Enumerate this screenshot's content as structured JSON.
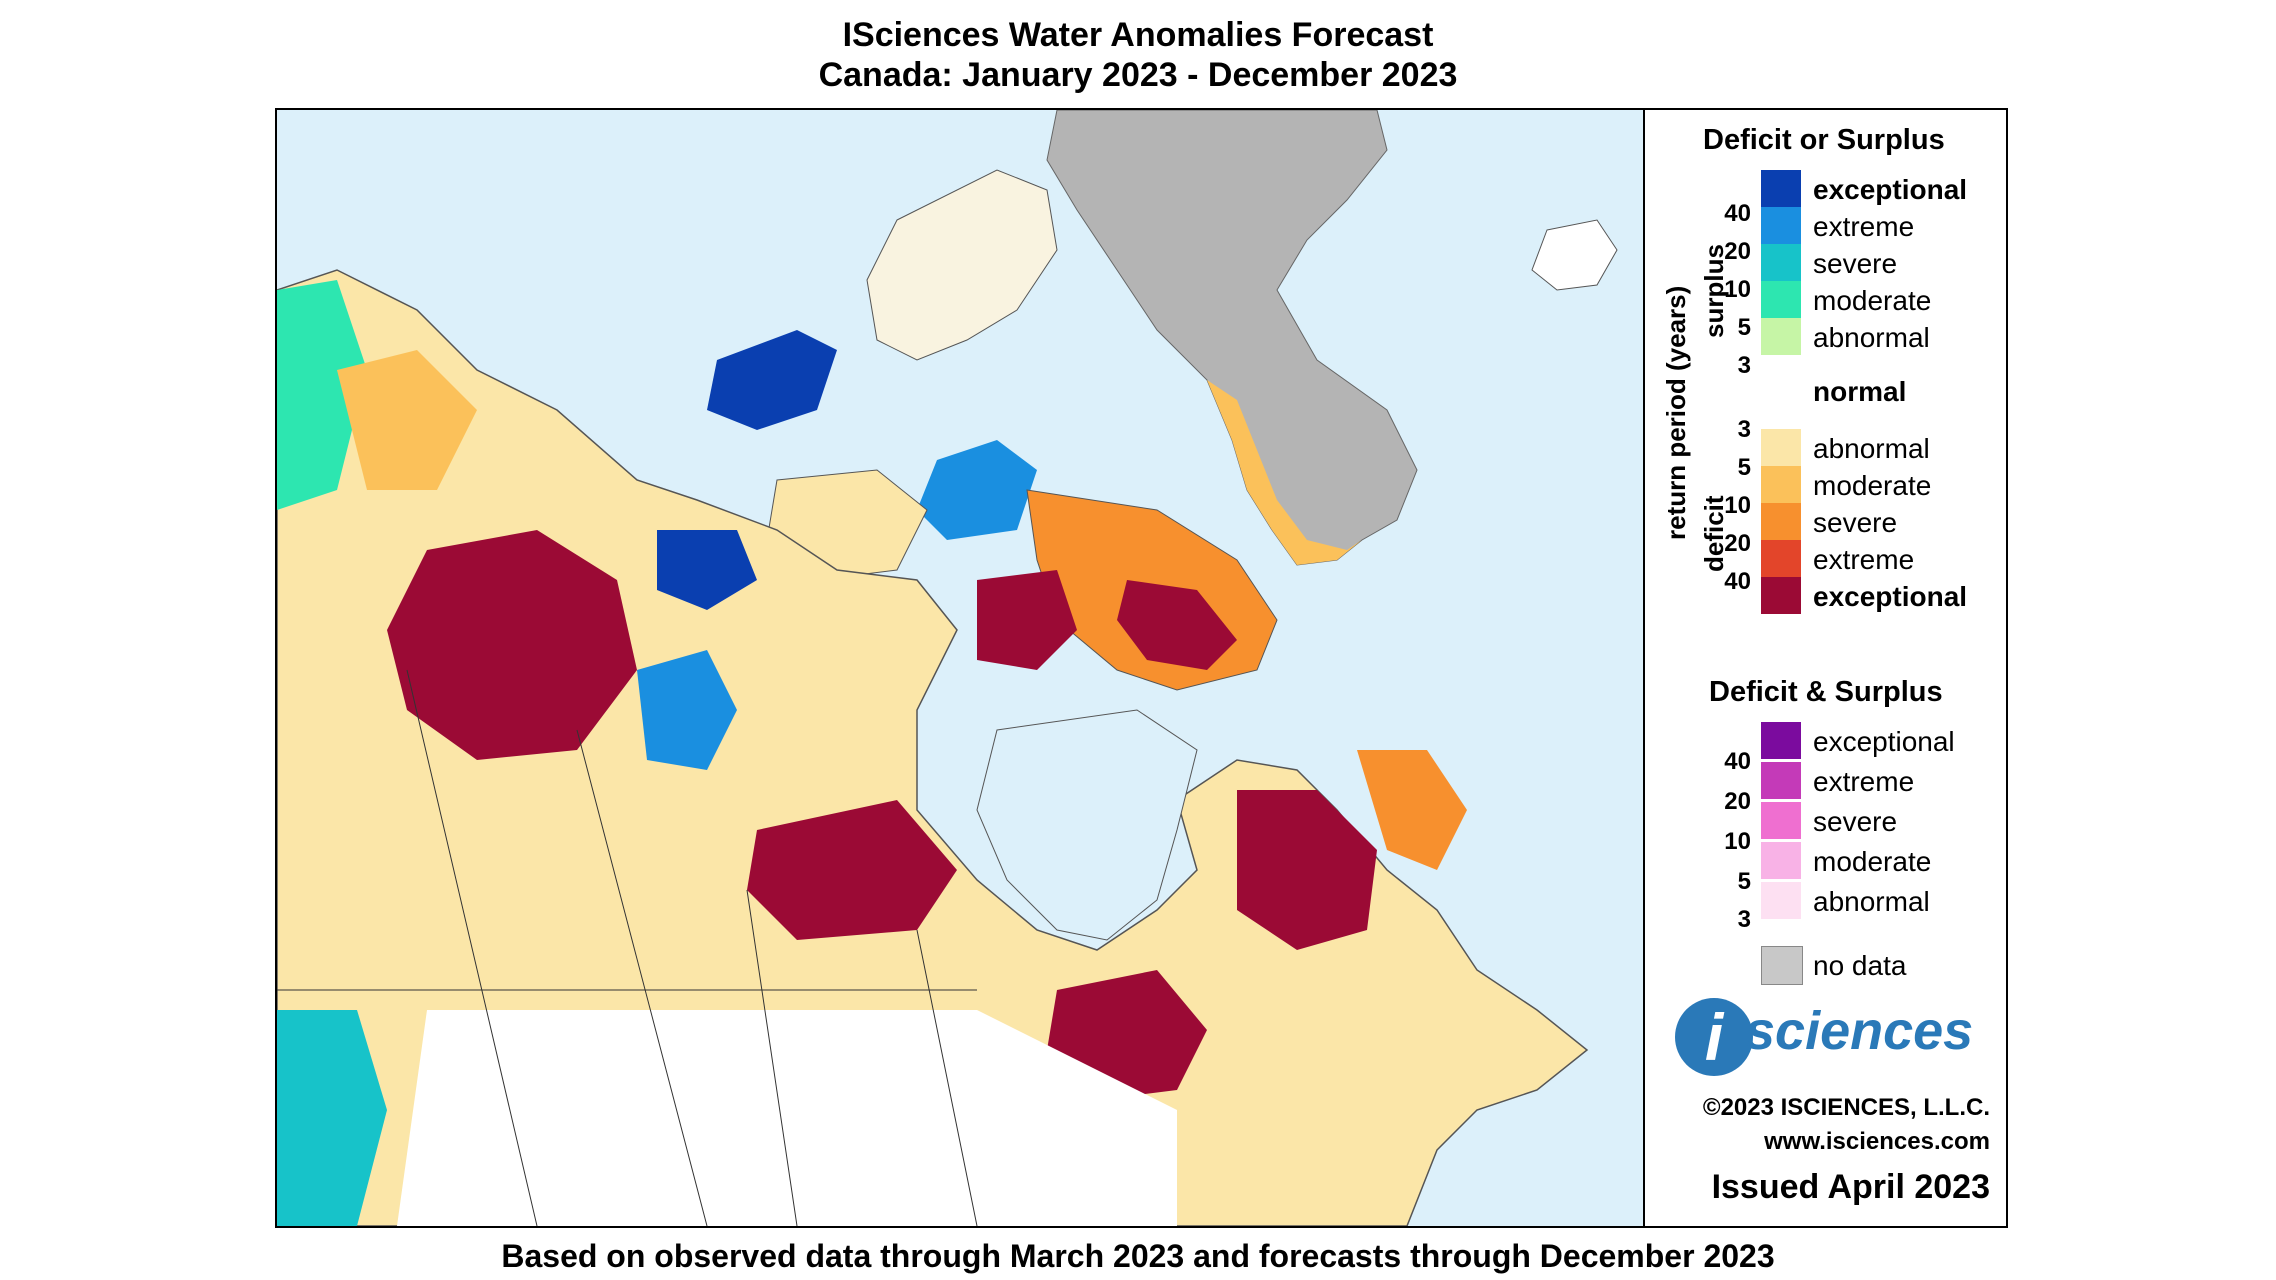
{
  "title_line1": "ISciences Water Anomalies Forecast",
  "title_line2": "Canada: January 2023 - December 2023",
  "footer": "Based on observed data through March 2023 and forecasts through December 2023",
  "legend": {
    "section1_title": "Deficit or Surplus",
    "axis_label": "return period (years)",
    "surplus_label": "surplus",
    "deficit_label": "deficit",
    "surplus_years": [
      "40",
      "20",
      "10",
      "5",
      "3"
    ],
    "deficit_years": [
      "3",
      "5",
      "10",
      "20",
      "40"
    ],
    "surplus": [
      {
        "label": "exceptional",
        "color": "#0a3fb0"
      },
      {
        "label": "extreme",
        "color": "#1a8fe0"
      },
      {
        "label": "severe",
        "color": "#17c3c9"
      },
      {
        "label": "moderate",
        "color": "#2de6b0"
      },
      {
        "label": "abnormal",
        "color": "#c6f5a6"
      }
    ],
    "normal": {
      "label": "normal",
      "color": "#ffffff"
    },
    "deficit": [
      {
        "label": "abnormal",
        "color": "#fbe6a8"
      },
      {
        "label": "moderate",
        "color": "#fbc15a"
      },
      {
        "label": "severe",
        "color": "#f7902e"
      },
      {
        "label": "extreme",
        "color": "#e3452a"
      },
      {
        "label": "exceptional",
        "color": "#9b0a35"
      }
    ],
    "section2_title": "Deficit & Surplus",
    "both_years": [
      "40",
      "20",
      "10",
      "5",
      "3"
    ],
    "both": [
      {
        "label": "exceptional",
        "color": "#7b0b9e"
      },
      {
        "label": "extreme",
        "color": "#c43ab8"
      },
      {
        "label": "severe",
        "color": "#ef6fd0"
      },
      {
        "label": "moderate",
        "color": "#f8b2e6"
      },
      {
        "label": "abnormal",
        "color": "#fde0f2"
      }
    ],
    "nodata": {
      "label": "no data",
      "color": "#c8c8c8"
    }
  },
  "logo": {
    "letter": "i",
    "text": "sciences"
  },
  "copyright": "©2023 ISCIENCES, L.L.C.",
  "website": "www.isciences.com",
  "issued": "Issued April 2023",
  "map_colors": {
    "water": "#dcf0fa",
    "land": "#ffffff",
    "greenland": "#b4b4b4"
  }
}
